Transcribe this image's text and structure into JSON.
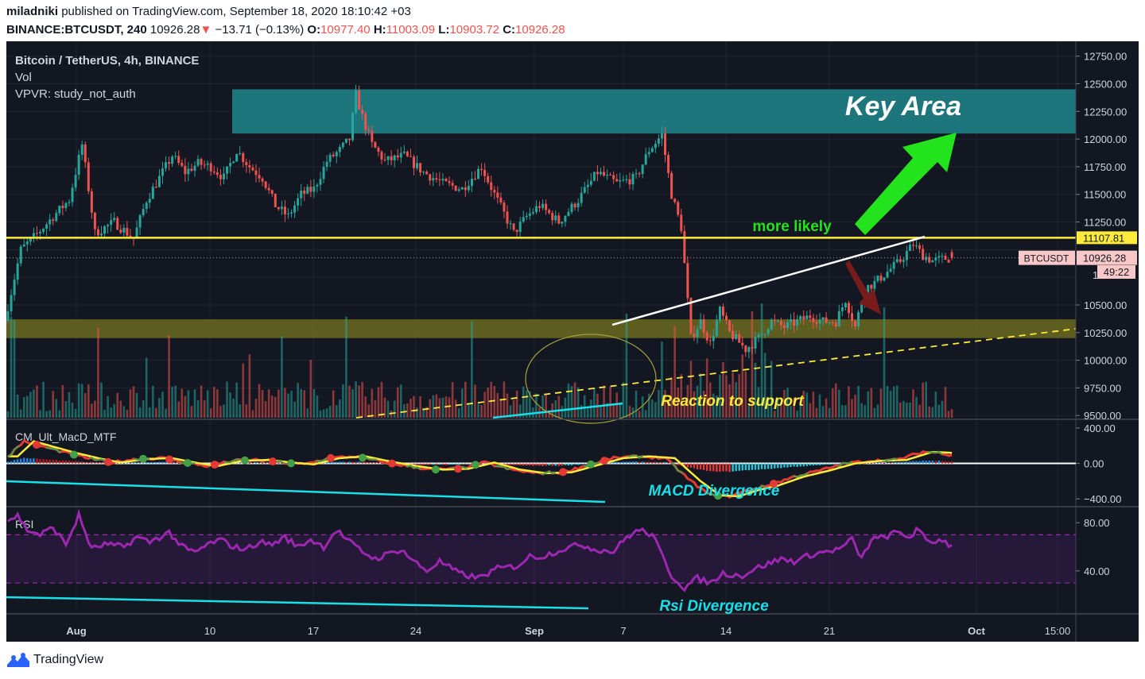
{
  "header": {
    "author": "miladniki",
    "published": "published on TradingView.com, September 18, 2020 18:10:42 +03",
    "symbol": "BINANCE:BTCUSDT, 240",
    "last": "10926.28",
    "change_arrow": "▼",
    "change": "−13.71 (−0.13%)",
    "o_label": "O:",
    "o_value": "10977.40",
    "h_label": "H:",
    "h_value": "11003.09",
    "l_label": "L:",
    "l_value": "10903.72",
    "c_label": "C:",
    "c_value": "10926.28"
  },
  "legend": {
    "title": "Bitcoin / TetherUS, 4h, BINANCE",
    "vol": "Vol",
    "vpvr": "VPVR: study_not_auth"
  },
  "footer": {
    "brand": "TradingView"
  },
  "colors": {
    "background": "#131722",
    "up": "#26a69a",
    "down": "#ef5350",
    "yellow_line": "#ffeb3b",
    "key_area": "#1e7b82",
    "support_zone": "#6b6a1f",
    "cyan": "#18e0e8",
    "rsi": "#9c27b0"
  },
  "chart_data": [
    {
      "type": "candlestick",
      "title": "Bitcoin / TetherUS, 4h, BINANCE",
      "x_tick_labels": [
        "Aug",
        "10",
        "17",
        "24",
        "Sep",
        "7",
        "14",
        "21",
        "Oct",
        "15:00"
      ],
      "y_tick_labels": [
        "12750.00",
        "12500.00",
        "12250.00",
        "12000.00",
        "11750.00",
        "11500.00",
        "11250.00",
        "11000.00",
        "10750.00",
        "10500.00",
        "10250.00",
        "10000.00",
        "9750.00",
        "9500.00"
      ],
      "ylim": [
        9480,
        12870
      ],
      "series_points": [
        [
          0,
          10360
        ],
        [
          5,
          11000
        ],
        [
          10,
          11140
        ],
        [
          15,
          11300
        ],
        [
          20,
          11450
        ],
        [
          24,
          11950
        ],
        [
          28,
          11150
        ],
        [
          34,
          11250
        ],
        [
          40,
          11100
        ],
        [
          44,
          11450
        ],
        [
          48,
          11650
        ],
        [
          52,
          11850
        ],
        [
          56,
          11700
        ],
        [
          60,
          11780
        ],
        [
          64,
          11750
        ],
        [
          68,
          11650
        ],
        [
          72,
          11900
        ],
        [
          76,
          11750
        ],
        [
          80,
          11650
        ],
        [
          84,
          11400
        ],
        [
          88,
          11300
        ],
        [
          92,
          11500
        ],
        [
          96,
          11550
        ],
        [
          100,
          11800
        ],
        [
          104,
          11900
        ],
        [
          107,
          12000
        ],
        [
          109,
          12400
        ],
        [
          111,
          12200
        ],
        [
          114,
          11950
        ],
        [
          118,
          11800
        ],
        [
          124,
          11850
        ],
        [
          130,
          11700
        ],
        [
          136,
          11600
        ],
        [
          142,
          11550
        ],
        [
          148,
          11750
        ],
        [
          152,
          11500
        ],
        [
          158,
          11150
        ],
        [
          162,
          11300
        ],
        [
          166,
          11400
        ],
        [
          172,
          11250
        ],
        [
          178,
          11450
        ],
        [
          184,
          11700
        ],
        [
          190,
          11600
        ],
        [
          196,
          11650
        ],
        [
          200,
          11900
        ],
        [
          204,
          12040
        ],
        [
          207,
          11500
        ],
        [
          210,
          11200
        ],
        [
          213,
          10200
        ],
        [
          216,
          10350
        ],
        [
          219,
          10150
        ],
        [
          222,
          10450
        ],
        [
          225,
          10250
        ],
        [
          230,
          10100
        ],
        [
          234,
          10200
        ],
        [
          238,
          10350
        ],
        [
          242,
          10300
        ],
        [
          246,
          10350
        ],
        [
          250,
          10400
        ],
        [
          254,
          10350
        ],
        [
          258,
          10350
        ],
        [
          261,
          10550
        ],
        [
          264,
          10300
        ],
        [
          267,
          10650
        ],
        [
          270,
          10700
        ],
        [
          274,
          10800
        ],
        [
          278,
          10900
        ],
        [
          282,
          11050
        ],
        [
          285,
          10950
        ],
        [
          288,
          10900
        ],
        [
          292,
          10920
        ]
      ],
      "last_price": "10926.28",
      "price_labels": {
        "yellow_level": "11107.81",
        "symbol": "BTCUSDT",
        "last_price": "10926.28",
        "countdown": "49:22"
      },
      "annotations": {
        "key_area": "Key Area",
        "more_likely": "more likely",
        "reaction": "Reaction to support"
      },
      "key_area_range": [
        12050,
        12450
      ],
      "support_zone_range": [
        10200,
        10370
      ],
      "resistance_level": 11107.81
    },
    {
      "type": "line",
      "title": "CM_Ult_MacD_MTF",
      "y_tick_labels": [
        "400.00",
        "0.00",
        "−400.00"
      ],
      "ylim": [
        -470,
        480
      ],
      "series_points": [
        [
          0,
          80
        ],
        [
          5,
          250
        ],
        [
          12,
          180
        ],
        [
          18,
          120
        ],
        [
          25,
          60
        ],
        [
          32,
          10
        ],
        [
          40,
          50
        ],
        [
          48,
          60
        ],
        [
          55,
          10
        ],
        [
          62,
          -30
        ],
        [
          70,
          30
        ],
        [
          78,
          40
        ],
        [
          85,
          10
        ],
        [
          92,
          -10
        ],
        [
          100,
          60
        ],
        [
          108,
          80
        ],
        [
          116,
          20
        ],
        [
          124,
          -30
        ],
        [
          132,
          -70
        ],
        [
          140,
          -60
        ],
        [
          148,
          10
        ],
        [
          156,
          -70
        ],
        [
          164,
          -110
        ],
        [
          172,
          -100
        ],
        [
          180,
          -20
        ],
        [
          188,
          60
        ],
        [
          196,
          80
        ],
        [
          204,
          60
        ],
        [
          212,
          -200
        ],
        [
          218,
          -360
        ],
        [
          224,
          -370
        ],
        [
          230,
          -300
        ],
        [
          236,
          -250
        ],
        [
          244,
          -150
        ],
        [
          252,
          -80
        ],
        [
          260,
          0
        ],
        [
          268,
          30
        ],
        [
          276,
          40
        ],
        [
          284,
          130
        ],
        [
          290,
          120
        ],
        [
          292,
          100
        ]
      ],
      "annotations": {
        "divergence": "MACD Divergence"
      }
    },
    {
      "type": "line",
      "title": "RSI",
      "y_tick_labels": [
        "80.00",
        "40.00"
      ],
      "ylim": [
        5,
        92
      ],
      "bands": [
        30,
        70
      ],
      "series_points": [
        [
          0,
          82
        ],
        [
          3,
          86
        ],
        [
          6,
          74
        ],
        [
          10,
          70
        ],
        [
          14,
          76
        ],
        [
          18,
          62
        ],
        [
          22,
          86
        ],
        [
          26,
          58
        ],
        [
          30,
          62
        ],
        [
          36,
          60
        ],
        [
          40,
          68
        ],
        [
          44,
          64
        ],
        [
          50,
          72
        ],
        [
          54,
          60
        ],
        [
          58,
          55
        ],
        [
          62,
          62
        ],
        [
          66,
          66
        ],
        [
          70,
          60
        ],
        [
          74,
          58
        ],
        [
          78,
          64
        ],
        [
          82,
          62
        ],
        [
          86,
          68
        ],
        [
          90,
          60
        ],
        [
          94,
          66
        ],
        [
          98,
          60
        ],
        [
          102,
          74
        ],
        [
          106,
          64
        ],
        [
          110,
          56
        ],
        [
          114,
          50
        ],
        [
          118,
          54
        ],
        [
          122,
          58
        ],
        [
          126,
          48
        ],
        [
          130,
          40
        ],
        [
          134,
          48
        ],
        [
          140,
          38
        ],
        [
          146,
          34
        ],
        [
          152,
          42
        ],
        [
          158,
          44
        ],
        [
          162,
          52
        ],
        [
          166,
          52
        ],
        [
          172,
          58
        ],
        [
          178,
          62
        ],
        [
          182,
          58
        ],
        [
          188,
          56
        ],
        [
          192,
          68
        ],
        [
          196,
          74
        ],
        [
          200,
          70
        ],
        [
          206,
          36
        ],
        [
          210,
          26
        ],
        [
          214,
          34
        ],
        [
          218,
          30
        ],
        [
          222,
          38
        ],
        [
          228,
          36
        ],
        [
          232,
          42
        ],
        [
          236,
          46
        ],
        [
          240,
          50
        ],
        [
          244,
          48
        ],
        [
          250,
          54
        ],
        [
          254,
          56
        ],
        [
          258,
          58
        ],
        [
          262,
          66
        ],
        [
          265,
          50
        ],
        [
          268,
          66
        ],
        [
          272,
          68
        ],
        [
          276,
          72
        ],
        [
          280,
          68
        ],
        [
          282,
          74
        ],
        [
          286,
          64
        ],
        [
          290,
          66
        ],
        [
          292,
          62
        ]
      ],
      "annotations": {
        "divergence": "Rsi Divergence"
      }
    }
  ]
}
